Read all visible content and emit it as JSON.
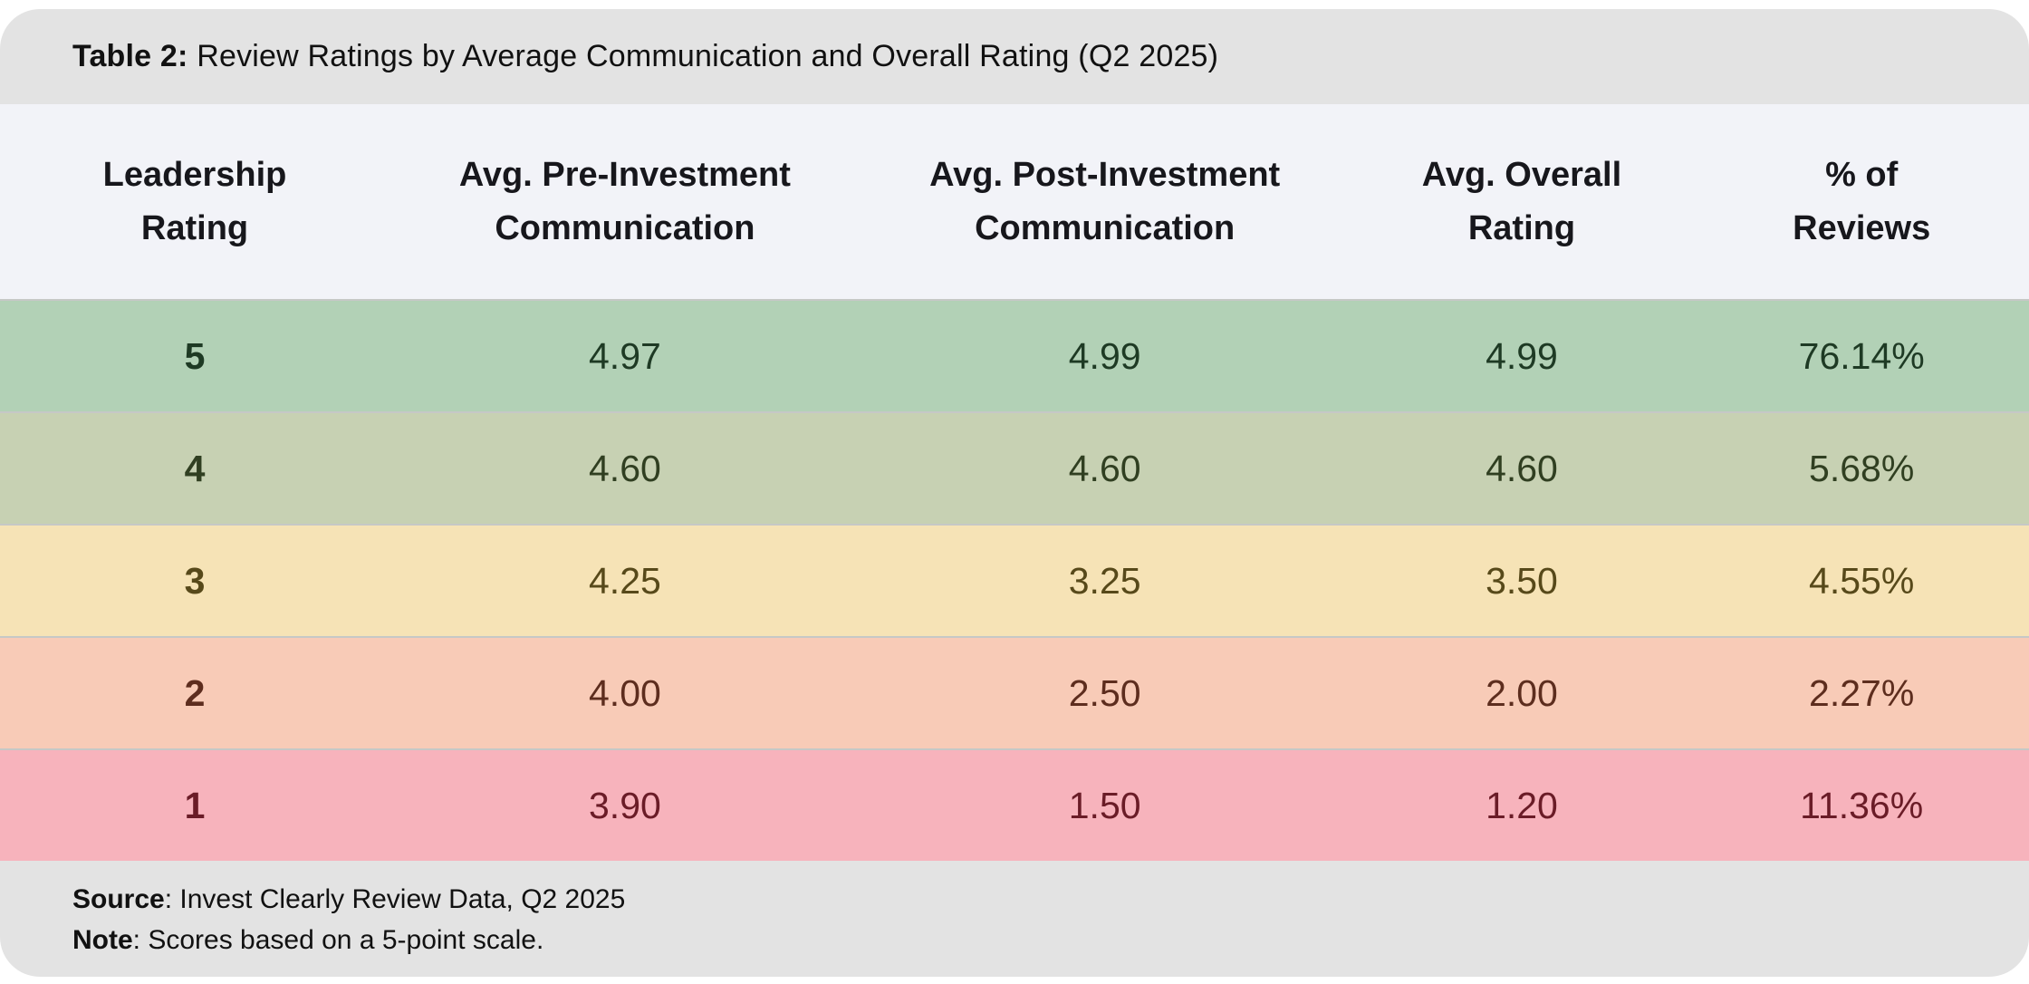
{
  "header": {
    "title_prefix": "Table 2:",
    "title_rest": " Review Ratings by Average Communication and Overall Rating (Q2 2025)"
  },
  "chart_data": {
    "type": "table",
    "title": "Table 2: Review Ratings by Average Communication and Overall Rating (Q2 2025)",
    "columns": [
      "Leadership Rating",
      "Avg. Pre-Investment Communication",
      "Avg. Post-Investment Communication",
      "Avg. Overall Rating",
      "% of Reviews"
    ],
    "rows": [
      {
        "leadership_rating": "5",
        "avg_pre_investment_communication": "4.97",
        "avg_post_investment_communication": "4.99",
        "avg_overall_rating": "4.99",
        "pct_of_reviews": "76.14%",
        "row_bg": "#b2d1b6",
        "row_fg": "#1e3a24"
      },
      {
        "leadership_rating": "4",
        "avg_pre_investment_communication": "4.60",
        "avg_post_investment_communication": "4.60",
        "avg_overall_rating": "4.60",
        "pct_of_reviews": "5.68%",
        "row_bg": "#c7d1b3",
        "row_fg": "#303f21"
      },
      {
        "leadership_rating": "3",
        "avg_pre_investment_communication": "4.25",
        "avg_post_investment_communication": "3.25",
        "avg_overall_rating": "3.50",
        "pct_of_reviews": "4.55%",
        "row_bg": "#f6e3b6",
        "row_fg": "#57491a"
      },
      {
        "leadership_rating": "2",
        "avg_pre_investment_communication": "4.00",
        "avg_post_investment_communication": "2.50",
        "avg_overall_rating": "2.00",
        "pct_of_reviews": "2.27%",
        "row_bg": "#f8cbb7",
        "row_fg": "#5d2d1e"
      },
      {
        "leadership_rating": "1",
        "avg_pre_investment_communication": "3.90",
        "avg_post_investment_communication": "1.50",
        "avg_overall_rating": "1.20",
        "pct_of_reviews": "11.36%",
        "row_bg": "#f7b3bc",
        "row_fg": "#6a1c27"
      }
    ],
    "source": "Source: Invest Clearly Review Data, Q2 2025",
    "note": "Note: Scores based on a 5-point scale."
  },
  "footer": {
    "source_label": "Source",
    "source_rest": ": Invest Clearly Review Data, Q2 2025",
    "note_label": "Note",
    "note_rest": ": Scores based on a 5-point scale."
  },
  "colors": {
    "band_bg": "#e3e3e3",
    "header_bg": "#f2f3f8",
    "page_bg": "#ffffff",
    "separator": "#c6c8c6"
  }
}
